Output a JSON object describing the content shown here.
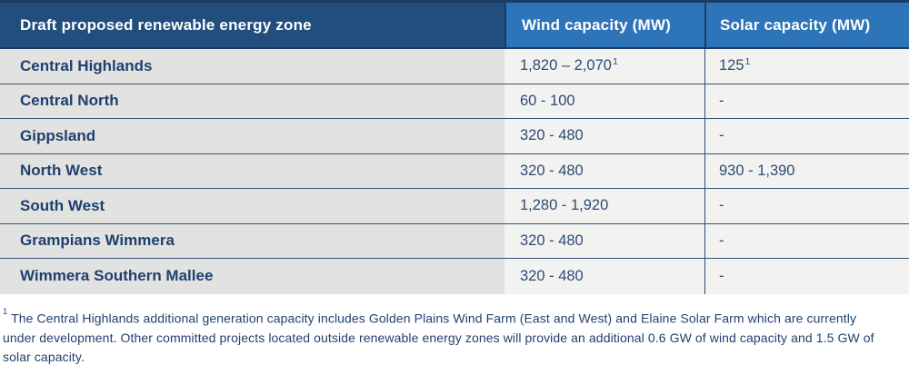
{
  "table": {
    "columns": [
      {
        "label": "Draft proposed renewable energy zone"
      },
      {
        "label": "Wind capacity (MW)"
      },
      {
        "label": "Solar capacity (MW)"
      }
    ],
    "rows": [
      {
        "zone": "Central Highlands",
        "wind": "1,820 – 2,070",
        "wind_sup": "1",
        "solar": "125",
        "solar_sup": "1"
      },
      {
        "zone": "Central North",
        "wind": "60 - 100",
        "wind_sup": "",
        "solar": "-",
        "solar_sup": ""
      },
      {
        "zone": "Gippsland",
        "wind": "320 - 480",
        "wind_sup": "",
        "solar": "-",
        "solar_sup": ""
      },
      {
        "zone": "North West",
        "wind": "320 - 480",
        "wind_sup": "",
        "solar": "930 - 1,390",
        "solar_sup": ""
      },
      {
        "zone": "South West",
        "wind": "1,280 - 1,920",
        "wind_sup": "",
        "solar": "-",
        "solar_sup": ""
      },
      {
        "zone": "Grampians Wimmera",
        "wind": "320 - 480",
        "wind_sup": "",
        "solar": "-",
        "solar_sup": ""
      },
      {
        "zone": "Wimmera Southern Mallee",
        "wind": "320 - 480",
        "wind_sup": "",
        "solar": "-",
        "solar_sup": ""
      }
    ]
  },
  "footnote": {
    "sup": "1",
    "text": " The Central Highlands additional generation capacity includes Golden Plains Wind Farm (East and West) and Elaine Solar Farm which are currently under development. Other committed projects located outside renewable energy zones will provide an additional 0.6 GW of wind capacity and 1.5 GW of solar capacity."
  },
  "colors": {
    "header_navy": "#224E7D",
    "header_blue": "#2E74B8",
    "divider_navy": "#1B3D64",
    "row_separator": "#3A5076",
    "zone_cell_gray": "#E2E2E0",
    "value_cell_light": "#F2F3F1",
    "text_navy": "#1E406F",
    "value_text": "#2E4A73"
  }
}
